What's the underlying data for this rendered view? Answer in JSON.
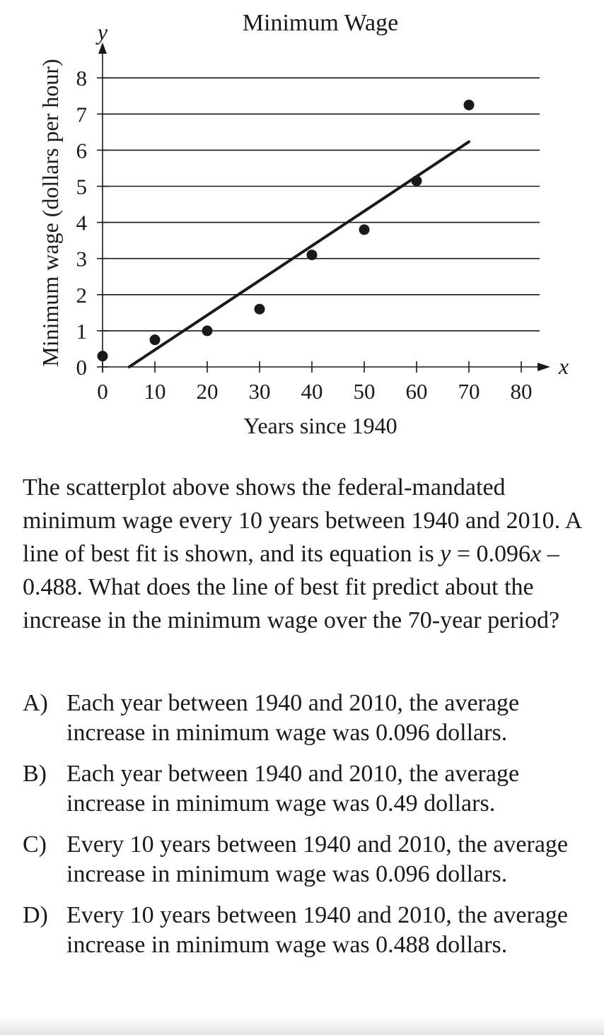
{
  "chart_data": {
    "type": "scatter",
    "title": "Minimum Wage",
    "xlabel": "Years since 1940",
    "ylabel": "Minimum wage (dollars per hour)",
    "x_axis_letter": "x",
    "y_axis_letter": "y",
    "xlim": [
      0,
      80
    ],
    "ylim": [
      0,
      8
    ],
    "x_ticks": [
      0,
      10,
      20,
      30,
      40,
      50,
      60,
      70,
      80
    ],
    "y_ticks": [
      0,
      1,
      2,
      3,
      4,
      5,
      6,
      7,
      8
    ],
    "grid": "horizontal",
    "points": [
      {
        "x": 0,
        "y": 0.3
      },
      {
        "x": 10,
        "y": 0.75
      },
      {
        "x": 20,
        "y": 1.0
      },
      {
        "x": 30,
        "y": 1.6
      },
      {
        "x": 40,
        "y": 3.1
      },
      {
        "x": 50,
        "y": 3.8
      },
      {
        "x": 60,
        "y": 5.15
      },
      {
        "x": 70,
        "y": 7.25
      }
    ],
    "best_fit": {
      "slope": 0.096,
      "intercept": -0.488,
      "x_start": 5.1,
      "x_end": 70
    }
  },
  "question": {
    "part1": "The scatterplot above shows the federal-mandated minimum wage every 10 years between 1940 and 2010. A line of best fit is shown, and its equation is ",
    "var_y": "y",
    "eq_mid": " = 0.096",
    "var_x": "x",
    "eq_end": " – 0.488.",
    "part2": " What does the line of best fit predict about the increase in the minimum wage over the 70-year period?"
  },
  "choices": [
    {
      "letter": "A)",
      "text": "Each year between 1940 and 2010, the average increase in minimum wage was 0.096 dollars."
    },
    {
      "letter": "B)",
      "text": "Each year between 1940 and 2010, the average increase in minimum wage was 0.49 dollars."
    },
    {
      "letter": "C)",
      "text": "Every 10 years between 1940 and 2010, the average increase in minimum wage was 0.096 dollars."
    },
    {
      "letter": "D)",
      "text": "Every 10 years between 1940 and 2010, the average increase in minimum wage was 0.488 dollars."
    }
  ]
}
